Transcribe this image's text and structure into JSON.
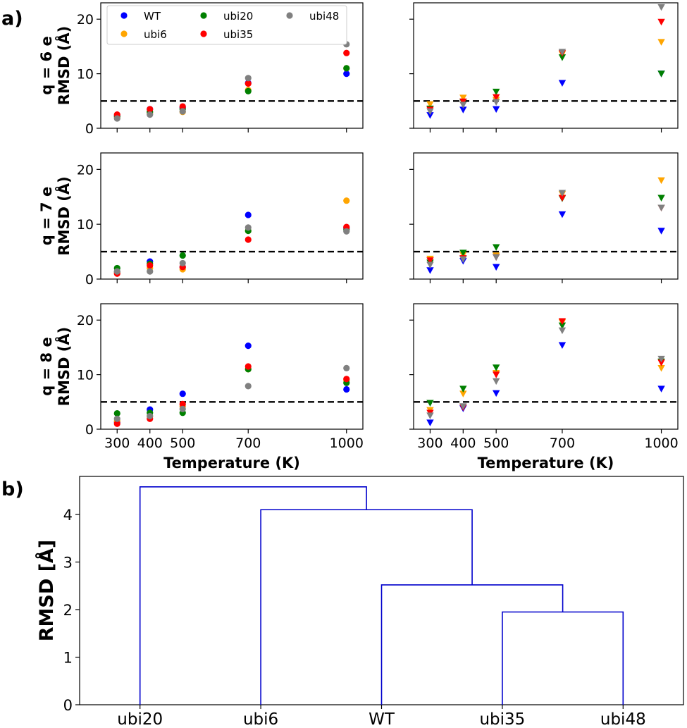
{
  "panel_labels": {
    "a": "a)",
    "b": "b)"
  },
  "colors": {
    "WT": "#0000ff",
    "ubi6": "#ffa500",
    "ubi20": "#008000",
    "ubi35": "#ff0000",
    "ubi48": "#808080",
    "dendrogram": "#0000cc"
  },
  "legend": [
    "WT",
    "ubi6",
    "ubi20",
    "ubi35",
    "ubi48"
  ],
  "xlabel": "Temperature (K)",
  "x_ticks": [
    "300",
    "400",
    "500",
    "700",
    "1000"
  ],
  "y_ticks": [
    "0",
    "10",
    "20"
  ],
  "row_labels": [
    {
      "line1": "q = 6 e",
      "line2": "RMSD (Å)"
    },
    {
      "line1": "q = 7 e",
      "line2": "RMSD (Å)"
    },
    {
      "line1": "q = 8 e",
      "line2": "RMSD (Å)"
    }
  ],
  "dendrogram_ylabel": "RMSD [Å]",
  "dendrogram_y_ticks": [
    "0",
    "1",
    "2",
    "3",
    "4"
  ],
  "dendrogram_leaves": [
    "ubi20",
    "ubi6",
    "WT",
    "ubi35",
    "ubi48"
  ],
  "chart_data": [
    {
      "type": "scatter",
      "panel": "a",
      "marker": "circle",
      "charge": "q = 6 e",
      "x": [
        300,
        400,
        500,
        700,
        1000
      ],
      "ylim": [
        0,
        23
      ],
      "threshold": 5,
      "series": [
        {
          "name": "WT",
          "values": [
            2.3,
            3.5,
            3.8,
            8.3,
            10.0
          ]
        },
        {
          "name": "ubi6",
          "values": [
            2.0,
            2.8,
            3.0,
            7.0,
            11.0
          ]
        },
        {
          "name": "ubi20",
          "values": [
            2.2,
            3.0,
            3.5,
            6.8,
            11.0
          ]
        },
        {
          "name": "ubi35",
          "values": [
            2.5,
            3.5,
            4.0,
            8.2,
            13.8
          ]
        },
        {
          "name": "ubi48",
          "values": [
            1.8,
            2.5,
            3.1,
            9.2,
            15.4
          ]
        }
      ]
    },
    {
      "type": "scatter",
      "panel": "a",
      "marker": "triangle-down",
      "charge": "q = 6 e",
      "x": [
        300,
        400,
        500,
        700,
        1000
      ],
      "ylim": [
        0,
        23
      ],
      "threshold": 5,
      "series": [
        {
          "name": "WT",
          "values": [
            2.4,
            3.4,
            3.5,
            8.3,
            10.0
          ]
        },
        {
          "name": "ubi6",
          "values": [
            4.4,
            5.6,
            5.2,
            13.6,
            15.8
          ]
        },
        {
          "name": "ubi20",
          "values": [
            3.6,
            4.8,
            6.7,
            13.0,
            10.0
          ]
        },
        {
          "name": "ubi35",
          "values": [
            3.4,
            4.9,
            5.7,
            13.8,
            19.5
          ]
        },
        {
          "name": "ubi48",
          "values": [
            3.1,
            4.3,
            4.8,
            14.0,
            22.2
          ]
        }
      ]
    },
    {
      "type": "scatter",
      "panel": "a",
      "marker": "circle",
      "charge": "q = 7 e",
      "x": [
        300,
        400,
        500,
        700,
        1000
      ],
      "ylim": [
        0,
        23
      ],
      "threshold": 5,
      "series": [
        {
          "name": "WT",
          "values": [
            1.3,
            3.2,
            2.2,
            11.7,
            9.3
          ]
        },
        {
          "name": "ubi6",
          "values": [
            1.2,
            2.0,
            1.8,
            8.8,
            14.3
          ]
        },
        {
          "name": "ubi20",
          "values": [
            2.0,
            2.8,
            4.3,
            8.8,
            9.0
          ]
        },
        {
          "name": "ubi35",
          "values": [
            1.0,
            2.5,
            2.2,
            7.2,
            9.5
          ]
        },
        {
          "name": "ubi48",
          "values": [
            1.4,
            1.4,
            2.9,
            9.4,
            8.7
          ]
        }
      ]
    },
    {
      "type": "scatter",
      "panel": "a",
      "marker": "triangle-down",
      "charge": "q = 7 e",
      "x": [
        300,
        400,
        500,
        700,
        1000
      ],
      "ylim": [
        0,
        23
      ],
      "threshold": 5,
      "series": [
        {
          "name": "WT",
          "values": [
            1.6,
            3.3,
            2.2,
            11.8,
            8.8
          ]
        },
        {
          "name": "ubi6",
          "values": [
            3.7,
            4.4,
            4.3,
            15.5,
            18.0
          ]
        },
        {
          "name": "ubi20",
          "values": [
            3.0,
            4.8,
            5.8,
            14.7,
            14.8
          ]
        },
        {
          "name": "ubi35",
          "values": [
            3.4,
            3.8,
            4.0,
            14.8,
            13.0
          ]
        },
        {
          "name": "ubi48",
          "values": [
            2.6,
            3.6,
            4.0,
            15.7,
            13.0
          ]
        }
      ]
    },
    {
      "type": "scatter",
      "panel": "a",
      "marker": "circle",
      "charge": "q = 8 e",
      "x": [
        300,
        400,
        500,
        700,
        1000
      ],
      "ylim": [
        0,
        23
      ],
      "threshold": 5,
      "series": [
        {
          "name": "WT",
          "values": [
            1.3,
            3.6,
            6.5,
            15.3,
            7.3
          ]
        },
        {
          "name": "ubi6",
          "values": [
            1.5,
            2.4,
            4.2,
            11.0,
            9.0
          ]
        },
        {
          "name": "ubi20",
          "values": [
            2.9,
            3.0,
            3.0,
            11.0,
            8.5
          ]
        },
        {
          "name": "ubi35",
          "values": [
            1.0,
            1.9,
            4.6,
            11.5,
            9.2
          ]
        },
        {
          "name": "ubi48",
          "values": [
            1.9,
            2.4,
            3.7,
            7.9,
            11.2
          ]
        }
      ]
    },
    {
      "type": "scatter",
      "panel": "a",
      "marker": "triangle-down",
      "charge": "q = 8 e",
      "x": [
        300,
        400,
        500,
        700,
        1000
      ],
      "ylim": [
        0,
        23
      ],
      "threshold": 5,
      "series": [
        {
          "name": "WT",
          "values": [
            1.2,
            3.8,
            6.6,
            15.4,
            7.4
          ]
        },
        {
          "name": "ubi6",
          "values": [
            3.5,
            6.5,
            10.3,
            19.6,
            11.2
          ]
        },
        {
          "name": "ubi20",
          "values": [
            4.8,
            7.4,
            11.3,
            19.0,
            12.4
          ]
        },
        {
          "name": "ubi35",
          "values": [
            3.0,
            4.0,
            10.0,
            19.8,
            12.2
          ]
        },
        {
          "name": "ubi48",
          "values": [
            2.5,
            4.2,
            8.8,
            18.1,
            12.9
          ]
        }
      ]
    },
    {
      "type": "dendrogram",
      "panel": "b",
      "ylabel": "RMSD [Å]",
      "ylim": [
        0,
        4.8
      ],
      "leaves": [
        "ubi20",
        "ubi6",
        "WT",
        "ubi35",
        "ubi48"
      ],
      "merges": [
        {
          "members": [
            "ubi35",
            "ubi48"
          ],
          "height": 1.95
        },
        {
          "members": [
            "WT",
            "ubi35",
            "ubi48"
          ],
          "height": 2.52
        },
        {
          "members": [
            "ubi6",
            "WT",
            "ubi35",
            "ubi48"
          ],
          "height": 4.1
        },
        {
          "members": [
            "ubi20",
            "ubi6",
            "WT",
            "ubi35",
            "ubi48"
          ],
          "height": 4.58
        }
      ]
    }
  ]
}
